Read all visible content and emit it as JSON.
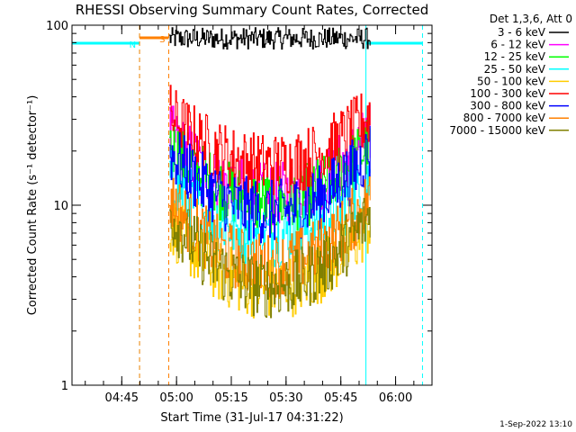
{
  "chart_data": {
    "type": "line",
    "title": "RHESSI Observing Summary Count Rates, Corrected",
    "xlabel": "Start Time (31-Jul-17 04:31:22)",
    "ylabel": "Corrected Count Rate (s⁻¹ detector⁻¹)",
    "yscale": "log",
    "ylim": [
      1,
      100
    ],
    "yticks": [
      1,
      10,
      100
    ],
    "ytick_labels": [
      "1",
      "10",
      "100"
    ],
    "xlim": [
      "04:31:22",
      "06:10:00"
    ],
    "xtick_labels": [
      "04:45",
      "05:00",
      "05:15",
      "05:30",
      "05:45",
      "06:00"
    ],
    "x_minute_range": [
      0,
      98.6
    ],
    "xtick_minutes": [
      13.63,
      28.63,
      43.63,
      58.63,
      73.63,
      88.63
    ],
    "grid": false,
    "legend_position": "right",
    "legend_header": "Det 1,3,6, Att 0",
    "footer_date": "1-Sep-2022 13:10",
    "series": [
      {
        "name": "3 - 6 keV",
        "color": "#000000",
        "level_range": [
          75,
          95
        ],
        "profile": "flat",
        "start": "04:58",
        "end": "05:53"
      },
      {
        "name": "6 - 12 keV",
        "color": "#ff00ff",
        "level_range": [
          10,
          25
        ],
        "profile": "u-shape",
        "start": "04:58",
        "end": "05:53"
      },
      {
        "name": "12 - 25 keV",
        "color": "#00ff00",
        "level_range": [
          9,
          22
        ],
        "profile": "u-shape",
        "start": "04:58",
        "end": "05:53"
      },
      {
        "name": "25 - 50 keV",
        "color": "#00ffff",
        "level_range": [
          6,
          14
        ],
        "profile": "u-shape",
        "start": "04:58",
        "end": "05:53"
      },
      {
        "name": "50 - 100 keV",
        "color": "#ffcc00",
        "level_range": [
          3,
          8
        ],
        "profile": "u-shape",
        "start": "04:58",
        "end": "05:53"
      },
      {
        "name": "100 - 300 keV",
        "color": "#ff0000",
        "level_range": [
          15,
          32
        ],
        "profile": "u-shape",
        "start": "04:58",
        "end": "05:53"
      },
      {
        "name": "300 - 800 keV",
        "color": "#0000ff",
        "level_range": [
          8,
          20
        ],
        "profile": "u-shape",
        "start": "04:58",
        "end": "05:53"
      },
      {
        "name": "800 - 7000 keV",
        "color": "#ff8000",
        "level_range": [
          4,
          11
        ],
        "profile": "u-shape",
        "start": "04:58",
        "end": "05:53"
      },
      {
        "name": "7000 - 15000 keV",
        "color": "#808000",
        "level_range": [
          3,
          9
        ],
        "profile": "u-shape",
        "start": "04:58",
        "end": "05:53"
      }
    ],
    "annotations": [
      {
        "label": "N",
        "type": "night",
        "color": "#00ffff",
        "x_minutes": [
          0,
          18.5
        ]
      },
      {
        "label": "S",
        "type": "saa",
        "color": "#ff8000",
        "x_minutes": [
          18.5,
          26.5
        ]
      },
      {
        "type": "night",
        "color": "#00ffff",
        "x_minutes": [
          80.5,
          96
        ]
      }
    ]
  }
}
